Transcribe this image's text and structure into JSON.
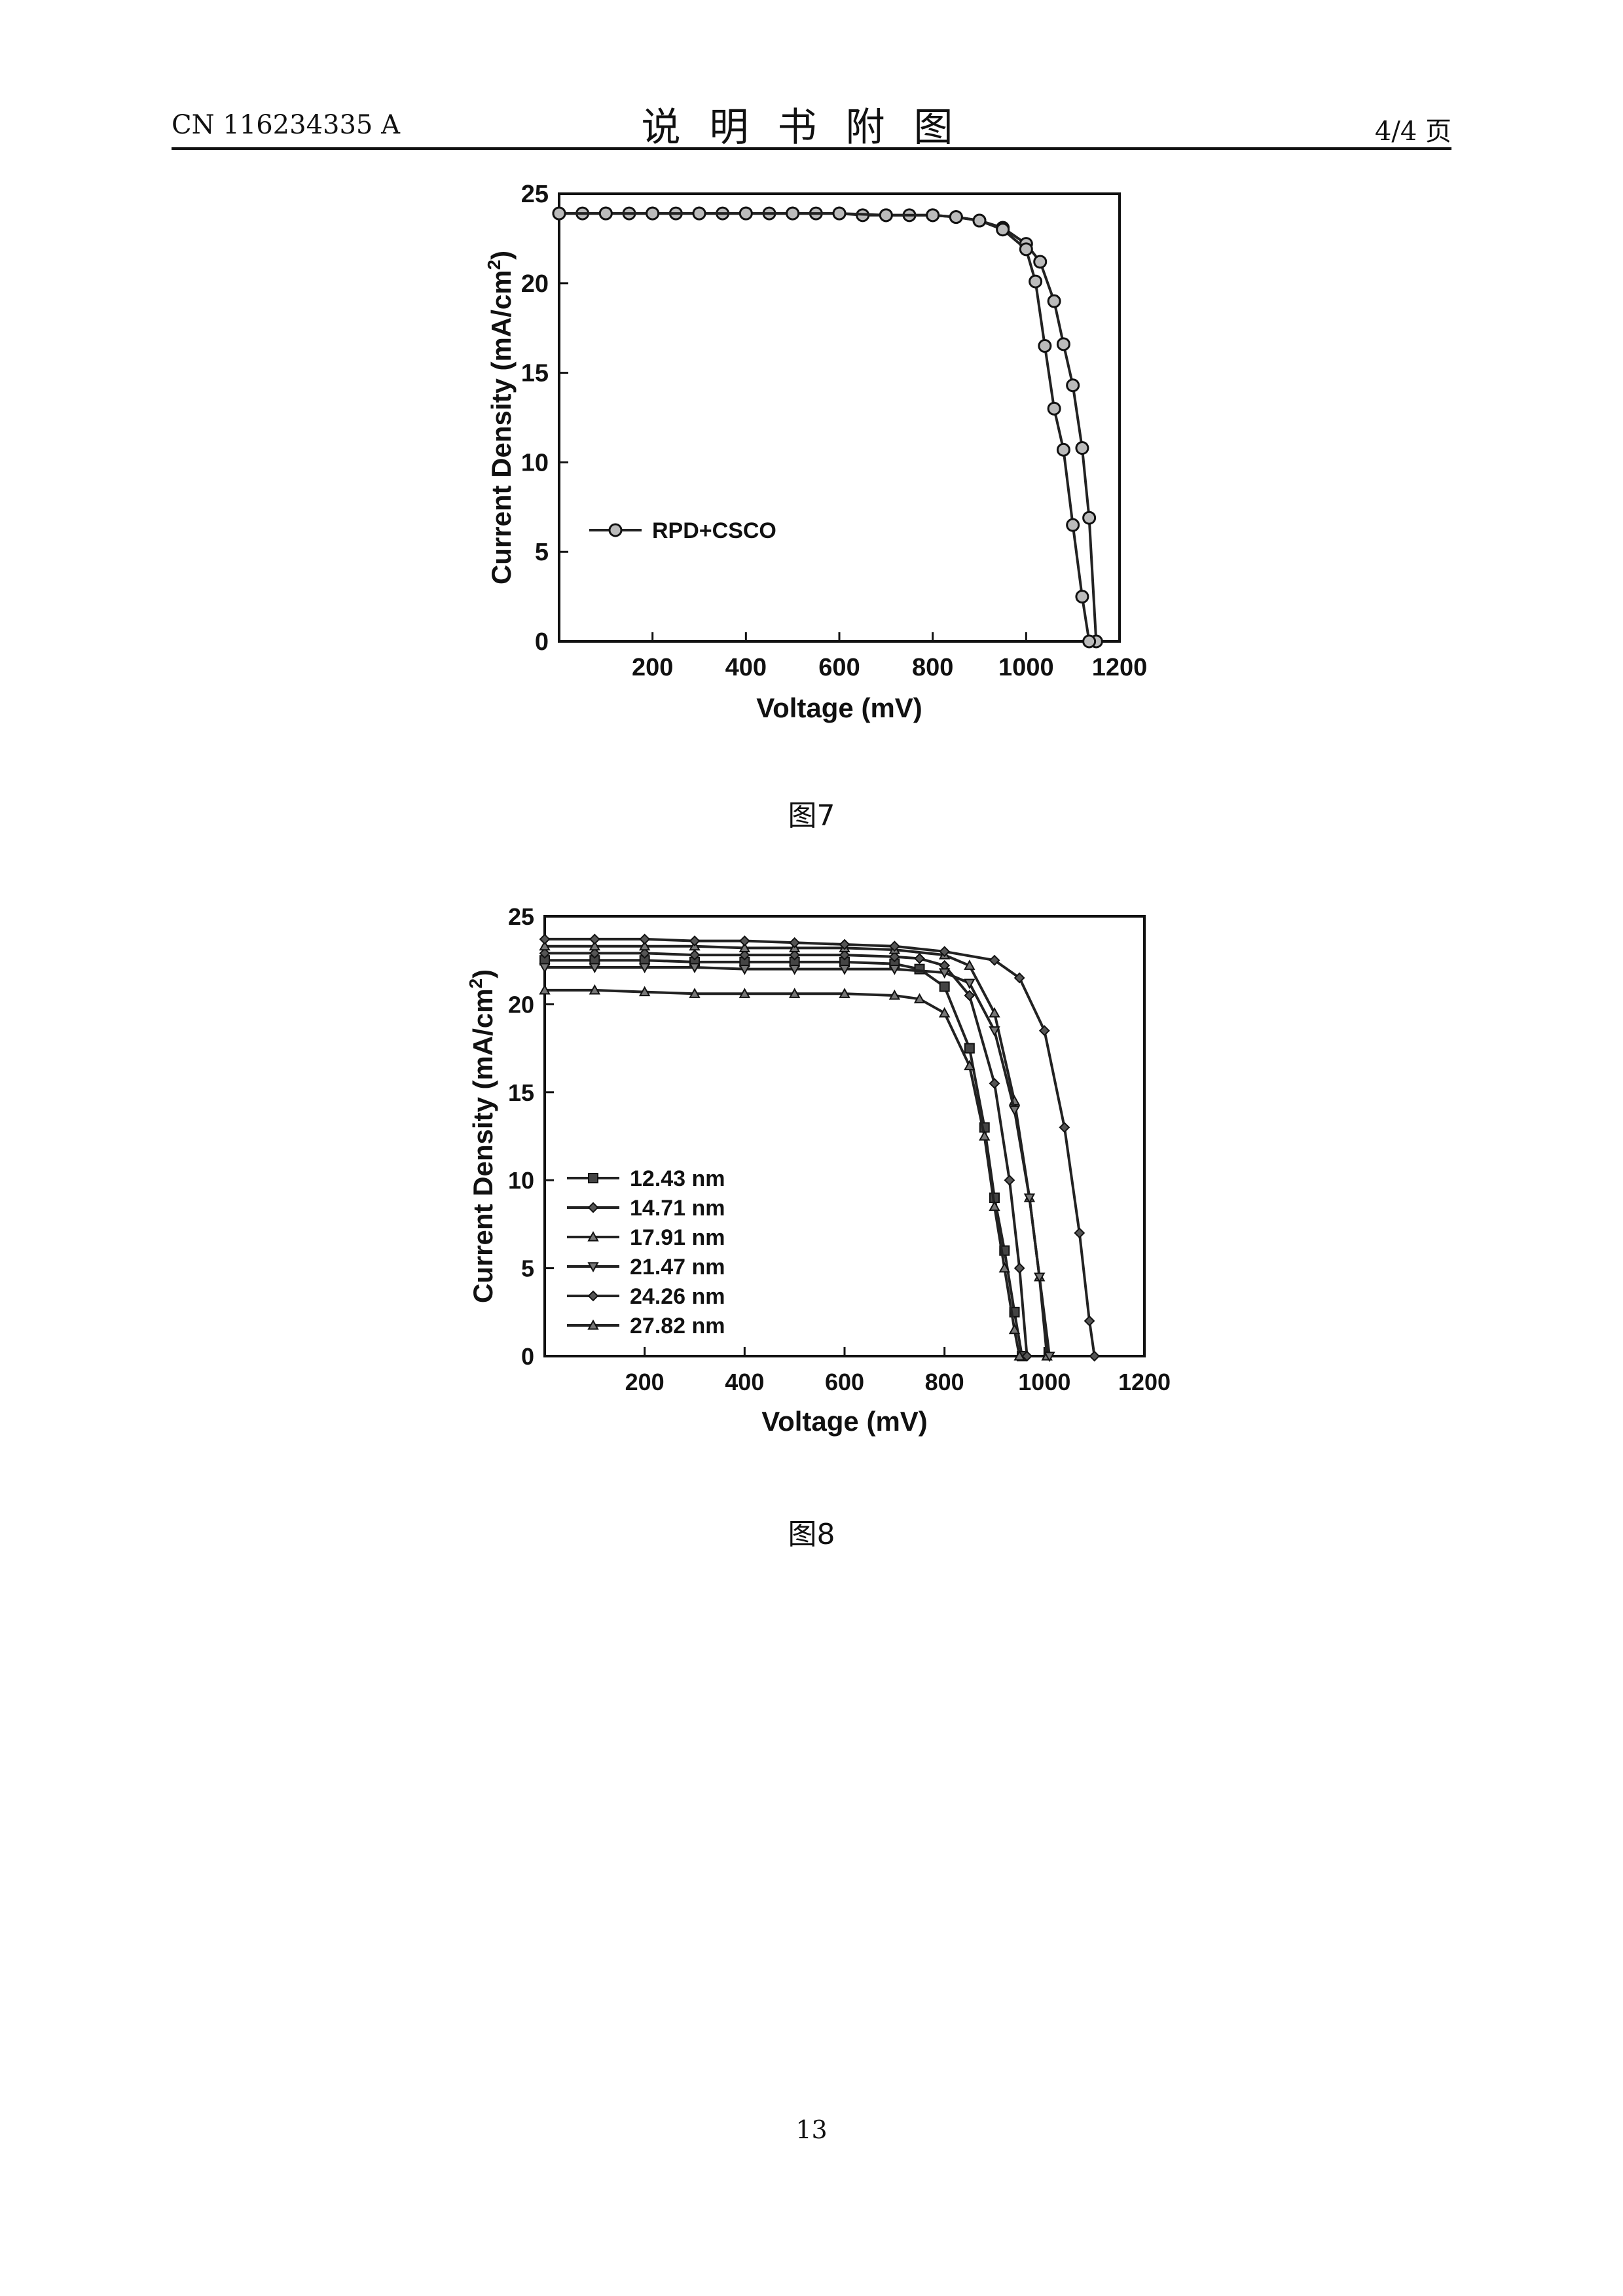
{
  "header": {
    "doc_number": "CN 116234335 A",
    "section_title": "说明书附图",
    "page_fraction": "4/4 页"
  },
  "figures": [
    {
      "caption": "图7"
    },
    {
      "caption": "图8"
    }
  ],
  "footer": {
    "page_number": "13"
  },
  "chart_data": [
    {
      "type": "line",
      "xlabel": "Voltage (mV)",
      "ylabel_main": "Current Density (mA/cm",
      "ylabel_sup": "2",
      "ylabel_close": ")",
      "xlim": [
        0,
        1200
      ],
      "ylim": [
        0,
        25
      ],
      "xticks": [
        200,
        400,
        600,
        800,
        1000,
        1200
      ],
      "yticks": [
        0,
        5,
        10,
        15,
        20,
        25
      ],
      "legend": {
        "placement": "center-left"
      },
      "series": [
        {
          "name": "RPD+CSCO",
          "marker": "circle",
          "x": [
            0,
            50,
            100,
            150,
            200,
            250,
            300,
            350,
            400,
            450,
            500,
            550,
            600,
            650,
            700,
            750,
            800,
            850,
            900,
            950,
            1000,
            1030,
            1060,
            1080,
            1100,
            1120,
            1135,
            1150
          ],
          "y": [
            23.9,
            23.9,
            23.9,
            23.9,
            23.9,
            23.9,
            23.9,
            23.9,
            23.9,
            23.9,
            23.9,
            23.9,
            23.9,
            23.8,
            23.8,
            23.8,
            23.8,
            23.7,
            23.5,
            23.1,
            22.2,
            21.2,
            19.0,
            16.6,
            14.3,
            10.8,
            6.9,
            0
          ]
        },
        {
          "name": "",
          "marker": "circle",
          "x": [
            0,
            100,
            200,
            300,
            400,
            500,
            600,
            700,
            800,
            850,
            900,
            950,
            1000,
            1020,
            1040,
            1060,
            1080,
            1100,
            1120,
            1135
          ],
          "y": [
            23.9,
            23.9,
            23.9,
            23.9,
            23.9,
            23.9,
            23.9,
            23.8,
            23.8,
            23.7,
            23.5,
            23.0,
            21.9,
            20.1,
            16.5,
            13.0,
            10.7,
            6.5,
            2.5,
            0
          ]
        }
      ]
    },
    {
      "type": "line",
      "xlabel": "Voltage (mV)",
      "ylabel_main": "Current Density (mA/cm",
      "ylabel_sup": "2",
      "ylabel_close": ")",
      "xlim": [
        0,
        1200
      ],
      "ylim": [
        0,
        25
      ],
      "xticks": [
        200,
        400,
        600,
        800,
        1000,
        1200
      ],
      "yticks": [
        0,
        5,
        10,
        15,
        20,
        25
      ],
      "legend": {
        "placement": "bottom-left"
      },
      "series": [
        {
          "name": "12.43 nm",
          "marker": "square",
          "x": [
            0,
            100,
            200,
            300,
            400,
            500,
            600,
            700,
            750,
            800,
            850,
            880,
            900,
            920,
            940,
            955
          ],
          "y": [
            22.5,
            22.5,
            22.5,
            22.4,
            22.4,
            22.4,
            22.4,
            22.3,
            22.0,
            21.0,
            17.5,
            13.0,
            9.0,
            6.0,
            2.5,
            0
          ]
        },
        {
          "name": "14.71 nm",
          "marker": "diamond",
          "x": [
            0,
            100,
            200,
            300,
            400,
            500,
            600,
            700,
            750,
            800,
            850,
            900,
            930,
            950,
            965
          ],
          "y": [
            22.9,
            22.9,
            22.9,
            22.8,
            22.8,
            22.8,
            22.8,
            22.7,
            22.6,
            22.2,
            20.5,
            15.5,
            10.0,
            5.0,
            0
          ]
        },
        {
          "name": "17.91 nm",
          "marker": "triangle",
          "x": [
            0,
            100,
            200,
            300,
            400,
            500,
            600,
            700,
            800,
            850,
            900,
            940,
            970,
            990,
            1005
          ],
          "y": [
            23.3,
            23.3,
            23.3,
            23.3,
            23.2,
            23.2,
            23.2,
            23.1,
            22.8,
            22.2,
            19.5,
            14.5,
            9.0,
            4.5,
            0
          ]
        },
        {
          "name": "21.47 nm",
          "marker": "triangle-down",
          "x": [
            0,
            100,
            200,
            300,
            400,
            500,
            600,
            700,
            800,
            850,
            900,
            940,
            970,
            990,
            1010
          ],
          "y": [
            22.1,
            22.1,
            22.1,
            22.1,
            22.0,
            22.0,
            22.0,
            22.0,
            21.8,
            21.2,
            18.5,
            14.0,
            9.0,
            4.5,
            0
          ]
        },
        {
          "name": "24.26 nm",
          "marker": "diamond",
          "x": [
            0,
            100,
            200,
            300,
            400,
            500,
            600,
            700,
            800,
            900,
            950,
            1000,
            1040,
            1070,
            1090,
            1100
          ],
          "y": [
            23.7,
            23.7,
            23.7,
            23.6,
            23.6,
            23.5,
            23.4,
            23.3,
            23.0,
            22.5,
            21.5,
            18.5,
            13.0,
            7.0,
            2.0,
            0
          ]
        },
        {
          "name": "27.82 nm",
          "marker": "triangle",
          "x": [
            0,
            100,
            200,
            300,
            400,
            500,
            600,
            700,
            750,
            800,
            850,
            880,
            900,
            920,
            940,
            950
          ],
          "y": [
            20.8,
            20.8,
            20.7,
            20.6,
            20.6,
            20.6,
            20.6,
            20.5,
            20.3,
            19.5,
            16.5,
            12.5,
            8.5,
            5.0,
            1.5,
            0
          ]
        }
      ]
    }
  ]
}
